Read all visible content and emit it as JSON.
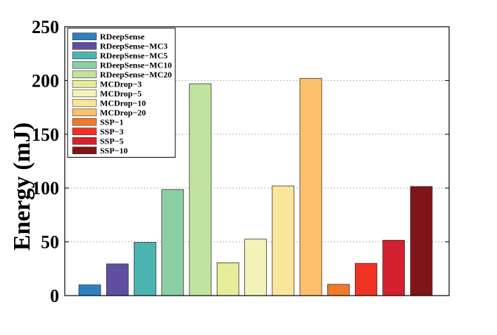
{
  "chart_data": {
    "type": "bar",
    "title": "",
    "xlabel": "",
    "ylabel": "Energy (mJ)",
    "ylim": [
      0,
      250
    ],
    "yticks": [
      0,
      50,
      100,
      150,
      200,
      250
    ],
    "grid": "horizontal dotted",
    "legend_position": "top-left",
    "series": [
      {
        "name": "RDeepSense",
        "value": 10,
        "color": "#3080c0"
      },
      {
        "name": "RDeepSense−MC3",
        "value": 29.5,
        "color": "#5e4fa2"
      },
      {
        "name": "RDeepSense−MC5",
        "value": 49.5,
        "color": "#4cb4b0"
      },
      {
        "name": "RDeepSense−MC10",
        "value": 98.5,
        "color": "#8ccfa4"
      },
      {
        "name": "RDeepSense−MC20",
        "value": 197,
        "color": "#c0e3a0"
      },
      {
        "name": "MCDrop−3",
        "value": 30.5,
        "color": "#e5ed9a"
      },
      {
        "name": "MCDrop−5",
        "value": 52.5,
        "color": "#f3f2b8"
      },
      {
        "name": "MCDrop−10",
        "value": 102,
        "color": "#fae59a"
      },
      {
        "name": "MCDrop−20",
        "value": 202,
        "color": "#fcc06c"
      },
      {
        "name": "SSP−1",
        "value": 10.5,
        "color": "#f07a28"
      },
      {
        "name": "SSP−3",
        "value": 30,
        "color": "#ef3224"
      },
      {
        "name": "SSP−5",
        "value": 51.5,
        "color": "#d42030"
      },
      {
        "name": "SSP−10",
        "value": 101.5,
        "color": "#7f1518"
      }
    ]
  }
}
